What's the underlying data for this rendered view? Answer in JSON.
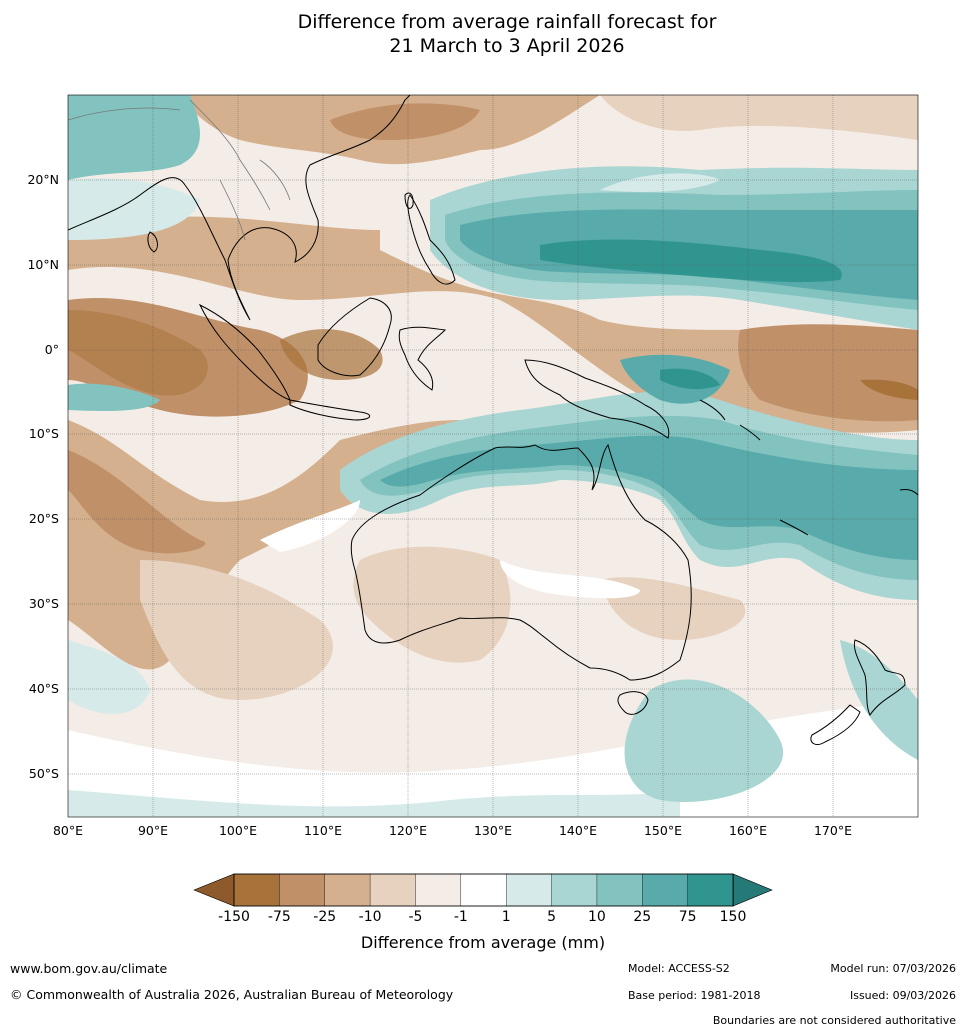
{
  "title": {
    "line1": "Difference from average rainfall forecast for",
    "line2": "21 March to 3 April 2026"
  },
  "map": {
    "lat_labels": [
      "20°N",
      "10°N",
      "0°",
      "10°S",
      "20°S",
      "30°S",
      "40°S",
      "50°S"
    ],
    "lon_labels": [
      "80°E",
      "90°E",
      "100°E",
      "110°E",
      "120°E",
      "130°E",
      "140°E",
      "150°E",
      "160°E",
      "170°E"
    ]
  },
  "colorbar": {
    "ticks": [
      "-150",
      "-75",
      "-25",
      "-10",
      "-5",
      "-1",
      "1",
      "5",
      "10",
      "25",
      "75",
      "150"
    ],
    "colors": [
      "#a8733a",
      "#c09068",
      "#d4b08e",
      "#e7d1bf",
      "#f4ece6",
      "#ffffff",
      "#d6ebe9",
      "#a9d6d3",
      "#82c2bf",
      "#58abaa",
      "#31958f"
    ],
    "low_extend_color": "#8e5a2c",
    "high_extend_color": "#257a77",
    "label": "Difference from average (mm)"
  },
  "footer": {
    "website": "www.bom.gov.au/climate",
    "copyright": "© Commonwealth of Australia 2026, Australian Bureau of Meteorology",
    "model": "Model: ACCESS-S2",
    "base_period": "Base period: 1981-2018",
    "model_run": "Model run: 07/03/2026",
    "issued": "Issued: 09/03/2026",
    "disclaimer": "Boundaries are not considered authoritative"
  }
}
